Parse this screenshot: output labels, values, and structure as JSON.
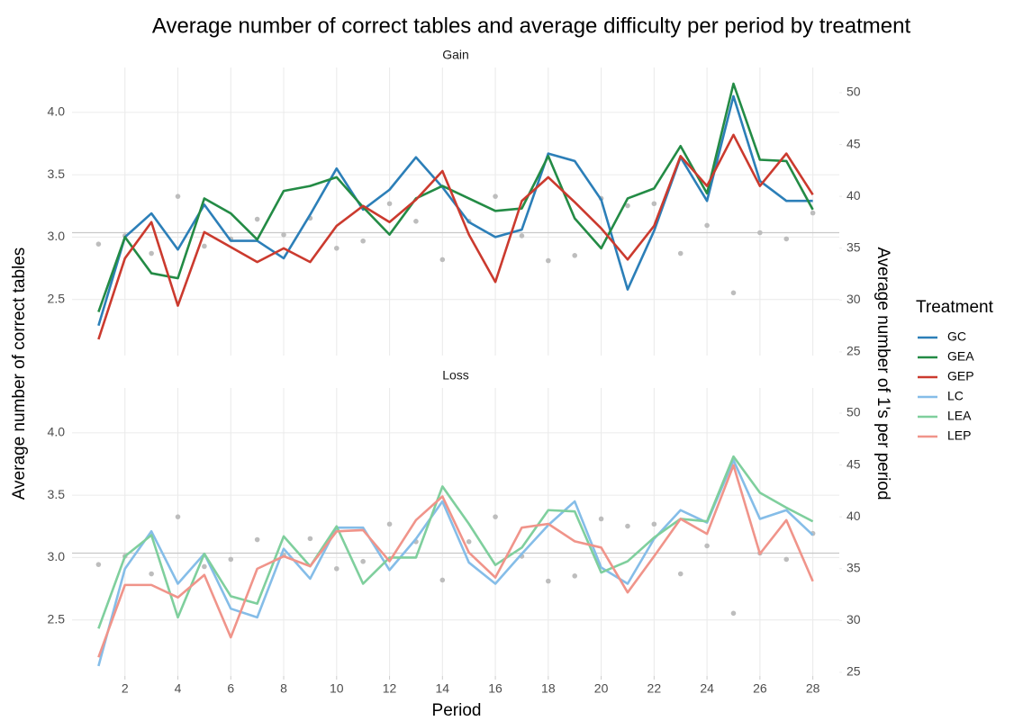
{
  "chart_data": {
    "type": "line",
    "title": "Average number of correct tables and average difficulty per period by treatment",
    "x_label": "Period",
    "y_label": "Average number of correct tables",
    "y2_label": "Average number of 1's per period",
    "legend_title": "Treatment",
    "legend": "right",
    "grid": true,
    "x": [
      1,
      2,
      3,
      4,
      5,
      6,
      7,
      8,
      9,
      10,
      11,
      12,
      13,
      14,
      15,
      16,
      17,
      18,
      19,
      20,
      21,
      22,
      23,
      24,
      25,
      26,
      27,
      28
    ],
    "xlim": [
      0,
      29
    ],
    "xticks": [
      2,
      4,
      6,
      8,
      10,
      12,
      14,
      16,
      18,
      20,
      22,
      24,
      26,
      28
    ],
    "ylim": [
      2.05,
      4.36
    ],
    "yticks": [
      2.5,
      {
        "value": 3,
        "label": "3.0"
      },
      3.5,
      {
        "value": 4,
        "label": "4.0"
      }
    ],
    "y2lim": [
      24.65,
      52.43
    ],
    "y2ticks": [
      25,
      30,
      35,
      40,
      45,
      50
    ],
    "difficulty": {
      "axis": "y2",
      "color": "#bdbdbd",
      "mean": 36.5,
      "values": [
        35.4,
        36.2,
        34.5,
        40.0,
        35.2,
        35.9,
        37.8,
        36.3,
        37.9,
        35.0,
        35.7,
        39.3,
        37.6,
        33.9,
        37.6,
        40.0,
        36.2,
        33.8,
        34.3,
        39.8,
        39.1,
        39.3,
        34.5,
        37.2,
        30.7,
        36.5,
        35.9,
        38.4
      ]
    },
    "facets": [
      {
        "name": "Gain",
        "series": [
          {
            "name": "GC",
            "color": "#2c7fb8",
            "values": [
              2.29,
              3.0,
              3.19,
              2.9,
              3.26,
              2.97,
              2.97,
              2.83,
              3.18,
              3.55,
              3.22,
              3.38,
              3.64,
              3.4,
              3.12,
              3.0,
              3.06,
              3.67,
              3.61,
              3.3,
              2.58,
              3.05,
              3.64,
              3.29,
              4.13,
              3.45,
              3.29,
              3.29
            ]
          },
          {
            "name": "GEA",
            "color": "#238b45",
            "values": [
              2.4,
              3.0,
              2.71,
              2.67,
              3.31,
              3.19,
              2.98,
              3.37,
              3.41,
              3.48,
              3.24,
              3.02,
              3.31,
              3.41,
              3.31,
              3.21,
              3.23,
              3.65,
              3.15,
              2.91,
              3.31,
              3.39,
              3.73,
              3.35,
              4.23,
              3.62,
              3.61,
              3.22
            ]
          },
          {
            "name": "GEP",
            "color": "#cb3a2e",
            "values": [
              2.18,
              2.83,
              3.12,
              2.45,
              3.04,
              2.92,
              2.8,
              2.91,
              2.8,
              3.09,
              3.25,
              3.12,
              3.3,
              3.53,
              3.02,
              2.64,
              3.29,
              3.48,
              3.28,
              3.07,
              2.82,
              3.09,
              3.65,
              3.41,
              3.82,
              3.41,
              3.67,
              3.34
            ]
          }
        ]
      },
      {
        "name": "Loss",
        "series": [
          {
            "name": "LC",
            "color": "#85bde8",
            "values": [
              2.13,
              2.91,
              3.21,
              2.79,
              3.03,
              2.59,
              2.52,
              3.07,
              2.83,
              3.24,
              3.24,
              2.9,
              3.15,
              3.45,
              2.96,
              2.79,
              3.03,
              3.26,
              3.45,
              2.92,
              2.79,
              3.15,
              3.38,
              3.28,
              3.78,
              3.31,
              3.38,
              3.18
            ]
          },
          {
            "name": "LEA",
            "color": "#7fcf9d",
            "values": [
              2.43,
              3.01,
              3.18,
              2.52,
              3.03,
              2.69,
              2.63,
              3.17,
              2.93,
              3.25,
              2.79,
              3.0,
              3.0,
              3.57,
              3.27,
              2.94,
              3.08,
              3.38,
              3.37,
              2.88,
              2.97,
              3.16,
              3.31,
              3.29,
              3.81,
              3.52,
              3.4,
              3.29
            ]
          },
          {
            "name": "LEP",
            "color": "#f0948a",
            "values": [
              2.2,
              2.78,
              2.78,
              2.68,
              2.86,
              2.36,
              2.91,
              3.01,
              2.93,
              3.21,
              3.22,
              2.97,
              3.3,
              3.49,
              3.04,
              2.84,
              3.24,
              3.27,
              3.13,
              3.08,
              2.72,
              3.01,
              3.31,
              3.19,
              3.74,
              3.03,
              3.3,
              2.81
            ]
          }
        ]
      }
    ]
  }
}
